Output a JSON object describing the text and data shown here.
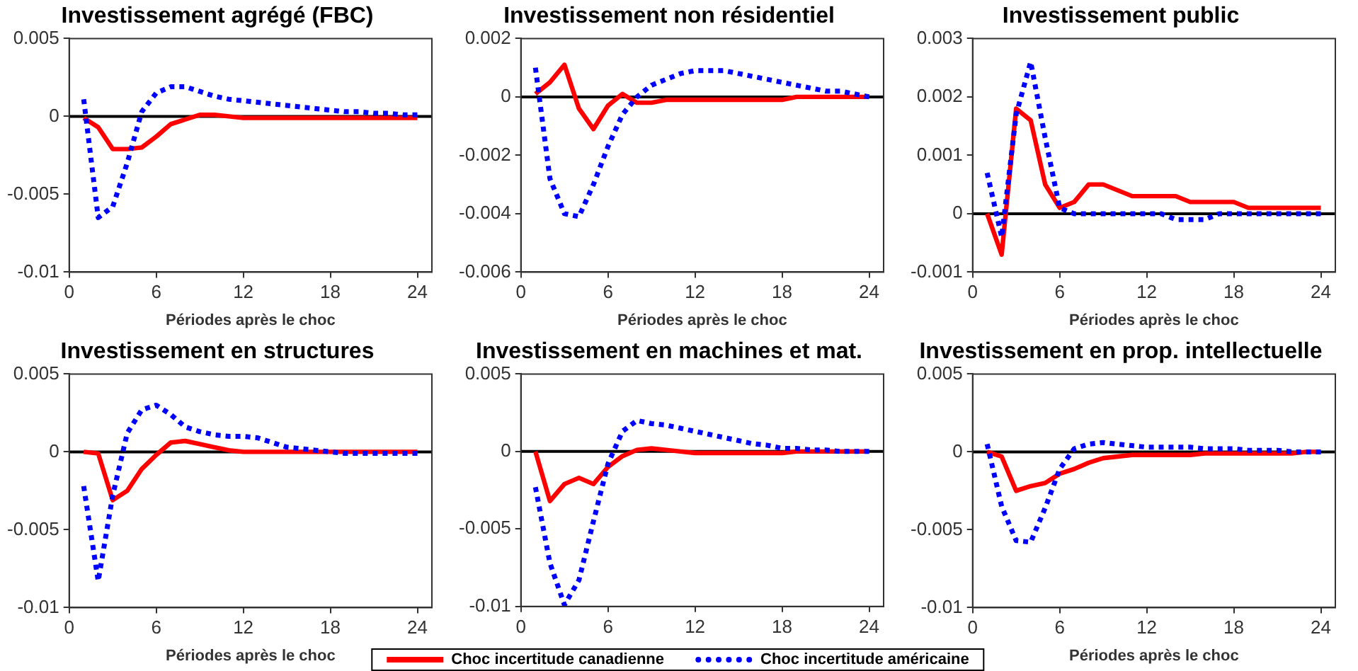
{
  "chart_data": [
    {
      "type": "line",
      "title": "Investissement agrégé (FBC)",
      "xlabel": "Périodes après le choc",
      "x": [
        1,
        2,
        3,
        4,
        5,
        6,
        7,
        8,
        9,
        10,
        11,
        12,
        13,
        14,
        15,
        16,
        17,
        18,
        19,
        20,
        21,
        22,
        23,
        24
      ],
      "xlim": [
        0,
        25
      ],
      "xticks": [
        0,
        6,
        12,
        18,
        24
      ],
      "ylim": [
        -0.01,
        0.005
      ],
      "yticks": [
        -0.01,
        -0.005,
        0,
        0.005
      ],
      "ref_lines": [
        {
          "axis": "y",
          "value": 0,
          "color": "#000000"
        }
      ],
      "series": [
        {
          "color": "#ff0000",
          "line_style": "solid",
          "values": [
            -0.0001,
            -0.0007,
            -0.0021,
            -0.0021,
            -0.002,
            -0.0013,
            -0.0005,
            -0.0002,
            0.0001,
            0.0001,
            0,
            -0.0001,
            -0.0001,
            -0.0001,
            -0.0001,
            -0.0001,
            -0.0001,
            -0.0001,
            -0.0001,
            -0.0001,
            -0.0001,
            -0.0001,
            -0.0001,
            -0.0001
          ]
        },
        {
          "color": "#0000ff",
          "line_style": "dotted",
          "values": [
            0.0011,
            -0.0065,
            -0.0058,
            -0.003,
            0.0003,
            0.0015,
            0.0019,
            0.0019,
            0.0016,
            0.0013,
            0.0011,
            0.001,
            0.0009,
            0.0008,
            0.0007,
            0.0006,
            0.0005,
            0.0004,
            0.0003,
            0.0003,
            0.0002,
            0.0002,
            0.0001,
            0.0001
          ]
        }
      ]
    },
    {
      "type": "line",
      "title": "Investissement non résidentiel",
      "x": [
        1,
        2,
        3,
        4,
        5,
        6,
        7,
        8,
        9,
        10,
        11,
        12,
        13,
        14,
        15,
        16,
        17,
        18,
        19,
        20,
        21,
        22,
        23,
        24
      ],
      "xlim": [
        0,
        25
      ],
      "xticks": [
        0,
        6,
        12,
        18,
        24
      ],
      "ylim": [
        -0.006,
        0.002
      ],
      "yticks": [
        -0.006,
        -0.004,
        -0.002,
        0,
        0.002
      ],
      "ref_lines": [
        {
          "axis": "y",
          "value": 0,
          "color": "#000000"
        }
      ],
      "xlabel": "Périodes après le choc",
      "series": [
        {
          "color": "#ff0000",
          "line_style": "solid",
          "values": [
            0.0001,
            0.0005,
            0.0011,
            -0.0004,
            -0.0011,
            -0.0003,
            0.0001,
            -0.0002,
            -0.0002,
            -0.0001,
            -0.0001,
            -0.0001,
            -0.0001,
            -0.0001,
            -0.0001,
            -0.0001,
            -0.0001,
            -0.0001,
            0,
            0,
            0,
            0,
            0,
            0
          ]
        },
        {
          "color": "#0000ff",
          "line_style": "dotted",
          "values": [
            0.001,
            -0.0028,
            -0.004,
            -0.0041,
            -0.003,
            -0.0017,
            -0.0006,
            0,
            0.0004,
            0.0006,
            0.0008,
            0.0009,
            0.0009,
            0.0009,
            0.0008,
            0.0007,
            0.0006,
            0.0005,
            0.0004,
            0.0003,
            0.0002,
            0.0002,
            0.0001,
            0
          ]
        }
      ]
    },
    {
      "type": "line",
      "title": "Investissement public",
      "xlabel": "Périodes après le choc",
      "x": [
        1,
        2,
        3,
        4,
        5,
        6,
        7,
        8,
        9,
        10,
        11,
        12,
        13,
        14,
        15,
        16,
        17,
        18,
        19,
        20,
        21,
        22,
        23,
        24
      ],
      "xlim": [
        0,
        25
      ],
      "xticks": [
        0,
        6,
        12,
        18,
        24
      ],
      "ylim": [
        -0.001,
        0.003
      ],
      "yticks": [
        -0.001,
        0,
        0.001,
        0.002,
        0.003
      ],
      "ref_lines": [
        {
          "axis": "y",
          "value": 0,
          "color": "#000000"
        }
      ],
      "series": [
        {
          "color": "#ff0000",
          "line_style": "solid",
          "values": [
            0,
            -0.0007,
            0.0018,
            0.0016,
            0.0005,
            0.0001,
            0.0002,
            0.0005,
            0.0005,
            0.0004,
            0.0003,
            0.0003,
            0.0003,
            0.0003,
            0.0002,
            0.0002,
            0.0002,
            0.0002,
            0.0001,
            0.0001,
            0.0001,
            0.0001,
            0.0001,
            0.0001
          ]
        },
        {
          "color": "#0000ff",
          "line_style": "dotted",
          "values": [
            0.0007,
            -0.0004,
            0.0017,
            0.0026,
            0.0013,
            0.0001,
            0,
            0,
            0,
            0,
            0,
            0,
            0,
            -0.0001,
            -0.0001,
            -0.0001,
            0,
            0,
            0,
            0,
            0,
            0,
            0,
            0
          ]
        }
      ]
    },
    {
      "type": "line",
      "title": "Investissement en structures",
      "xlabel": "Périodes après le choc",
      "x": [
        1,
        2,
        3,
        4,
        5,
        6,
        7,
        8,
        9,
        10,
        11,
        12,
        13,
        14,
        15,
        16,
        17,
        18,
        19,
        20,
        21,
        22,
        23,
        24
      ],
      "xlim": [
        0,
        25
      ],
      "xticks": [
        0,
        6,
        12,
        18,
        24
      ],
      "ylim": [
        -0.01,
        0.005
      ],
      "yticks": [
        -0.01,
        -0.005,
        0,
        0.005
      ],
      "ref_lines": [
        {
          "axis": "y",
          "value": 0,
          "color": "#000000"
        }
      ],
      "series": [
        {
          "color": "#ff0000",
          "line_style": "solid",
          "values": [
            0,
            -0.0001,
            -0.0031,
            -0.0025,
            -0.0011,
            -0.0002,
            0.0006,
            0.0007,
            0.0005,
            0.0003,
            0.0001,
            0,
            0,
            0,
            0,
            0,
            0,
            0,
            0,
            0,
            0,
            0,
            0,
            0
          ]
        },
        {
          "color": "#0000ff",
          "line_style": "dotted",
          "values": [
            -0.0022,
            -0.0083,
            -0.0028,
            0.0012,
            0.0027,
            0.003,
            0.0024,
            0.0016,
            0.0013,
            0.0011,
            0.001,
            0.001,
            0.0009,
            0.0006,
            0.0003,
            0.0002,
            0.0001,
            0,
            -0.0001,
            -0.0001,
            -0.0001,
            -0.0001,
            -0.0001,
            -0.0001
          ]
        }
      ]
    },
    {
      "type": "line",
      "title": "Investissement en machines et mat.",
      "x": [
        1,
        2,
        3,
        4,
        5,
        6,
        7,
        8,
        9,
        10,
        11,
        12,
        13,
        14,
        15,
        16,
        17,
        18,
        19,
        20,
        21,
        22,
        23,
        24
      ],
      "xlim": [
        0,
        25
      ],
      "xticks": [
        0,
        6,
        12,
        18,
        24
      ],
      "ylim": [
        -0.01,
        0.005
      ],
      "yticks": [
        -0.01,
        -0.005,
        0,
        0.005
      ],
      "ref_lines": [
        {
          "axis": "y",
          "value": 0,
          "color": "#000000"
        }
      ],
      "legend": "bottom",
      "series": [
        {
          "name": "Choc incertitude canadienne",
          "color": "#ff0000",
          "line_style": "solid",
          "values": [
            0,
            -0.0032,
            -0.0021,
            -0.0017,
            -0.0021,
            -0.001,
            -0.0003,
            0.0001,
            0.0002,
            0.0001,
            0,
            -0.0001,
            -0.0001,
            -0.0001,
            -0.0001,
            -0.0001,
            -0.0001,
            -0.0001,
            0,
            0,
            0,
            0,
            0,
            0
          ]
        },
        {
          "name": "Choc incertitude américaine",
          "color": "#0000ff",
          "line_style": "dotted",
          "values": [
            -0.0023,
            -0.0072,
            -0.0099,
            -0.0083,
            -0.0045,
            -0.0008,
            0.0013,
            0.002,
            0.0018,
            0.0017,
            0.0015,
            0.0013,
            0.0011,
            0.0009,
            0.0007,
            0.0005,
            0.0004,
            0.0002,
            0.0002,
            0.0001,
            0.0001,
            0,
            0,
            0
          ]
        }
      ]
    },
    {
      "type": "line",
      "title": "Investissement en prop. intellectuelle",
      "xlabel": "Périodes après le choc",
      "x": [
        1,
        2,
        3,
        4,
        5,
        6,
        7,
        8,
        9,
        10,
        11,
        12,
        13,
        14,
        15,
        16,
        17,
        18,
        19,
        20,
        21,
        22,
        23,
        24
      ],
      "xlim": [
        0,
        25
      ],
      "xticks": [
        0,
        6,
        12,
        18,
        24
      ],
      "ylim": [
        -0.01,
        0.005
      ],
      "yticks": [
        -0.01,
        -0.005,
        0,
        0.005
      ],
      "ref_lines": [
        {
          "axis": "y",
          "value": 0,
          "color": "#000000"
        }
      ],
      "series": [
        {
          "color": "#ff0000",
          "line_style": "solid",
          "values": [
            0,
            -0.0003,
            -0.0025,
            -0.0022,
            -0.002,
            -0.0014,
            -0.0011,
            -0.0007,
            -0.0004,
            -0.0003,
            -0.0002,
            -0.0002,
            -0.0002,
            -0.0002,
            -0.0002,
            -0.0001,
            -0.0001,
            -0.0001,
            -0.0001,
            -0.0001,
            -0.0001,
            -0.0001,
            0,
            0
          ]
        },
        {
          "color": "#0000ff",
          "line_style": "dotted",
          "values": [
            0.0005,
            -0.0035,
            -0.0057,
            -0.0058,
            -0.0036,
            -0.0011,
            0.0002,
            0.0005,
            0.0006,
            0.0005,
            0.0004,
            0.0003,
            0.0003,
            0.0003,
            0.0003,
            0.0002,
            0.0002,
            0.0002,
            0.0001,
            0.0001,
            0.0001,
            0,
            0,
            0
          ]
        }
      ]
    }
  ]
}
